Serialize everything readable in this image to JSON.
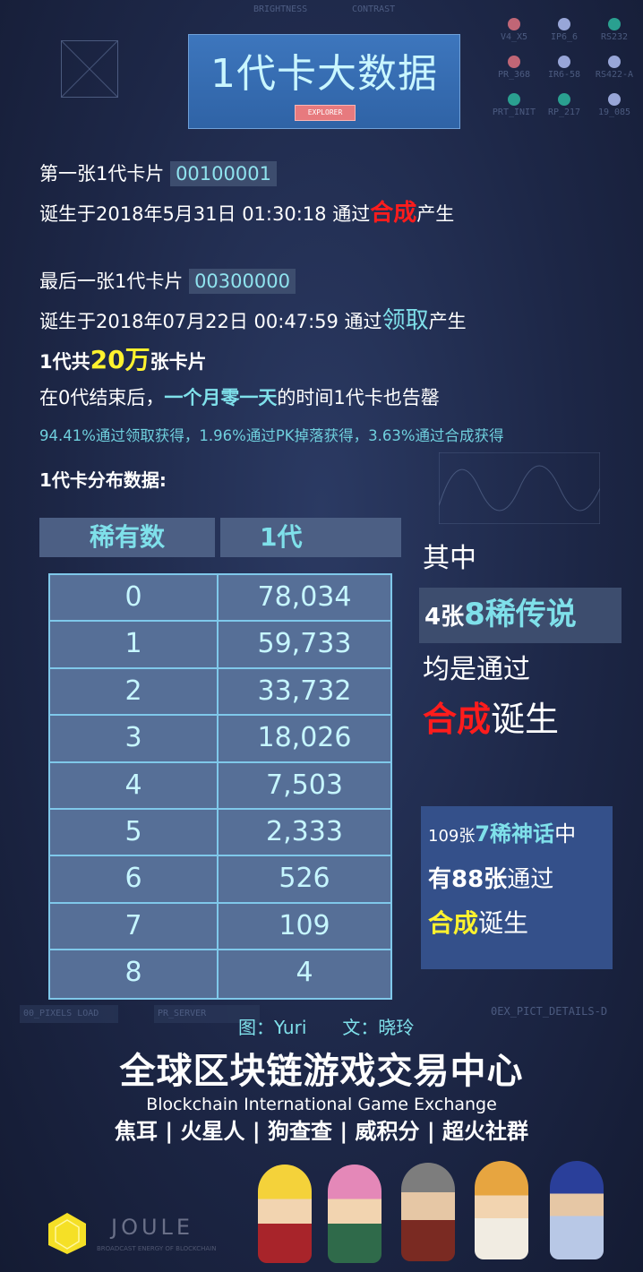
{
  "header": {
    "title": "1代卡大数据",
    "explorer_label": "EXPLORER"
  },
  "hud": {
    "brightness": "BRIGHTNESS",
    "contrast": "CONTRAST",
    "knobs": [
      "V4_X5",
      "IP6_6",
      "RS232",
      "PR_368",
      "IR6-58",
      "RS422-A",
      "PRT_INIT",
      "RP_217",
      "19_085"
    ],
    "pixels_load": "00_PIXELS LOAD",
    "pr_server": "PR_SERVER",
    "details": "0EX_PICT_DETAILS-D"
  },
  "first": {
    "label": "第一张1代卡片",
    "id": "00100001",
    "born_prefix": "诞生于2018年5月31日 01:30:18 通过",
    "method": "合成",
    "born_suffix": "产生"
  },
  "last": {
    "label": "最后一张1代卡片",
    "id": "00300000",
    "born_prefix": "诞生于2018年07月22日 00:47:59 通过",
    "method": "领取",
    "born_suffix": "产生"
  },
  "total": {
    "prefix": "1代共",
    "amount": "20万",
    "suffix": "张卡片"
  },
  "duration": {
    "prefix": "在0代结束后，",
    "highlight": "一个月零一天",
    "suffix": "的时间1代卡也告罄"
  },
  "percentages": "94.41%通过领取获得，1.96%通过PK掉落获得，3.63%通过合成获得",
  "distribution_title": "1代卡分布数据:",
  "table": {
    "headers": [
      "稀有数",
      "1代"
    ],
    "rows": [
      [
        "0",
        "78,034"
      ],
      [
        "1",
        "59,733"
      ],
      [
        "2",
        "33,732"
      ],
      [
        "3",
        "18,026"
      ],
      [
        "4",
        "7,503"
      ],
      [
        "5",
        "2,333"
      ],
      [
        "6",
        "526"
      ],
      [
        "7",
        "109"
      ],
      [
        "8",
        "4"
      ]
    ]
  },
  "callout1": {
    "line1": "其中",
    "count": "4张",
    "rarity": "8稀传说",
    "line3": "均是通过",
    "method": "合成",
    "suffix": "诞生"
  },
  "callout2": {
    "prefix": "109张",
    "rarity": "7稀神话",
    "tail": "中",
    "line2a": "有88张",
    "line2b": "通过",
    "method": "合成",
    "suffix": "诞生"
  },
  "credits": {
    "image": "图：Yuri",
    "text": "文：晓玲"
  },
  "footer": {
    "title": "全球区块链游戏交易中心",
    "subtitle": "Blockchain International Game Exchange",
    "partners": "焦耳 | 火星人 | 狗查查 | 威积分 | 超火社群",
    "joule": "JOULE",
    "joule_tag": "BROADCAST ENERGY OF BLOCKCHAIN"
  },
  "colors": {
    "accent_cyan": "#7fe0ea",
    "red": "#ff1c1c",
    "yellow": "#fff22e",
    "background": "#1d2747"
  }
}
